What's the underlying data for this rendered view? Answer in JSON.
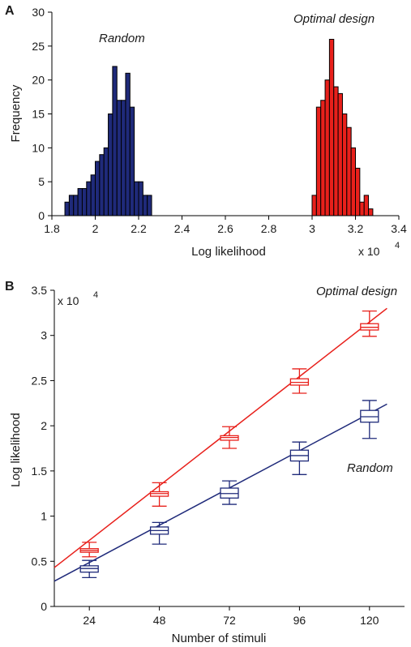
{
  "chart_data": [
    {
      "panel_label": "A",
      "type": "bar",
      "xlabel": "Log likelihood",
      "ylabel": "Frequency",
      "x_multiplier": "x 10",
      "x_multiplier_exp": "4",
      "xlim": [
        1.8,
        3.4
      ],
      "ylim": [
        0,
        30
      ],
      "x_ticks": [
        "1.8",
        "2",
        "2.2",
        "2.4",
        "2.6",
        "2.8",
        "3",
        "3.2",
        "3.4"
      ],
      "y_ticks": [
        "0",
        "5",
        "10",
        "15",
        "20",
        "25",
        "30"
      ],
      "bin_width": 0.02,
      "series": [
        {
          "name": "Random",
          "color": "#1f2a7a",
          "bin_starts": [
            1.86,
            1.88,
            1.9,
            1.92,
            1.94,
            1.96,
            1.98,
            2.0,
            2.02,
            2.04,
            2.06,
            2.08,
            2.1,
            2.12,
            2.14,
            2.16,
            2.18,
            2.2,
            2.22,
            2.24
          ],
          "counts": [
            2,
            3,
            3,
            4,
            4,
            5,
            6,
            8,
            9,
            10,
            15,
            22,
            17,
            17,
            21,
            16,
            5,
            5,
            3,
            3
          ]
        },
        {
          "name": "Optimal design",
          "color": "#e8201b",
          "bin_starts": [
            3.0,
            3.02,
            3.04,
            3.06,
            3.08,
            3.1,
            3.12,
            3.14,
            3.16,
            3.18,
            3.2,
            3.22,
            3.24,
            3.26
          ],
          "counts": [
            3,
            16,
            17,
            20,
            26,
            19,
            18,
            15,
            13,
            10,
            7,
            2,
            3,
            1
          ]
        }
      ],
      "annotations": [
        "Random",
        "Optimal design"
      ]
    },
    {
      "panel_label": "B",
      "type": "box",
      "xlabel": "Number of stimuli",
      "ylabel": "Log likelihood",
      "y_multiplier": "x 10",
      "y_multiplier_exp": "4",
      "xlim": [
        12,
        132
      ],
      "ylim": [
        0,
        3.5
      ],
      "x_ticks": [
        "24",
        "48",
        "72",
        "96",
        "120"
      ],
      "y_ticks": [
        "0",
        "0.5",
        "1",
        "1.5",
        "2",
        "2.5",
        "3",
        "3.5"
      ],
      "categories": [
        24,
        48,
        72,
        96,
        120
      ],
      "series": [
        {
          "name": "Optimal design",
          "color": "#e8201b",
          "boxes": [
            {
              "x": 24,
              "whisker_low": 0.55,
              "q1": 0.6,
              "median": 0.62,
              "q3": 0.64,
              "whisker_high": 0.71
            },
            {
              "x": 48,
              "whisker_low": 1.11,
              "q1": 1.22,
              "median": 1.25,
              "q3": 1.27,
              "whisker_high": 1.37
            },
            {
              "x": 72,
              "whisker_low": 1.75,
              "q1": 1.84,
              "median": 1.87,
              "q3": 1.89,
              "whisker_high": 1.99
            },
            {
              "x": 96,
              "whisker_low": 2.36,
              "q1": 2.45,
              "median": 2.48,
              "q3": 2.52,
              "whisker_high": 2.63
            },
            {
              "x": 120,
              "whisker_low": 2.99,
              "q1": 3.06,
              "median": 3.09,
              "q3": 3.13,
              "whisker_high": 3.27
            }
          ],
          "fit_line": [
            [
              12,
              0.43
            ],
            [
              126,
              3.3
            ]
          ]
        },
        {
          "name": "Random",
          "color": "#1f2a7a",
          "boxes": [
            {
              "x": 24,
              "whisker_low": 0.32,
              "q1": 0.38,
              "median": 0.42,
              "q3": 0.45,
              "whisker_high": 0.51
            },
            {
              "x": 48,
              "whisker_low": 0.69,
              "q1": 0.8,
              "median": 0.84,
              "q3": 0.88,
              "whisker_high": 0.93
            },
            {
              "x": 72,
              "whisker_low": 1.13,
              "q1": 1.2,
              "median": 1.25,
              "q3": 1.31,
              "whisker_high": 1.39
            },
            {
              "x": 96,
              "whisker_low": 1.46,
              "q1": 1.61,
              "median": 1.67,
              "q3": 1.73,
              "whisker_high": 1.82
            },
            {
              "x": 120,
              "whisker_low": 1.86,
              "q1": 2.04,
              "median": 2.1,
              "q3": 2.17,
              "whisker_high": 2.28
            }
          ],
          "fit_line": [
            [
              12,
              0.28
            ],
            [
              126,
              2.24
            ]
          ]
        }
      ],
      "annotations": [
        "Optimal design",
        "Random"
      ]
    }
  ]
}
